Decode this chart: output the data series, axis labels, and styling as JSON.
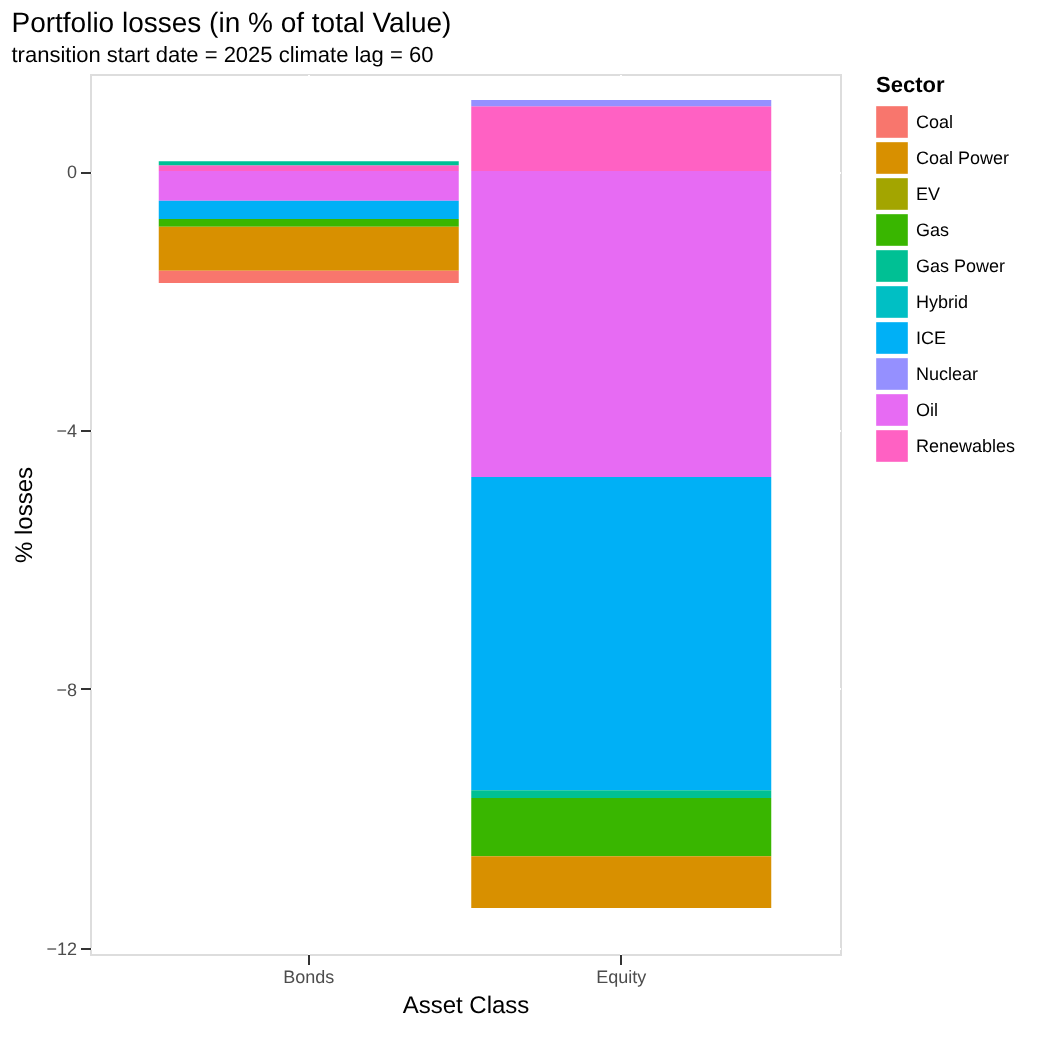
{
  "chart_data": {
    "type": "bar",
    "title": "Portfolio losses (in % of total Value)",
    "subtitle": "transition start date = 2025   climate lag = 60",
    "xlabel": "Asset Class",
    "ylabel": "% losses",
    "legend_title": "Sector",
    "categories": [
      "Bonds",
      "Equity"
    ],
    "stacked": true,
    "series": [
      {
        "name": "Renewables",
        "color": "#ff61c3",
        "values": [
          0.09,
          1.0
        ]
      },
      {
        "name": "Oil",
        "color": "#e76bf3",
        "values": [
          -0.46,
          -4.73
        ]
      },
      {
        "name": "Nuclear",
        "color": "#9590ff",
        "values": [
          null,
          0.1
        ]
      },
      {
        "name": "ICE",
        "color": "#00b0f6",
        "values": [
          -0.28,
          -4.84
        ]
      },
      {
        "name": "Hybrid",
        "color": "#00bfc4",
        "values": [
          null,
          null
        ]
      },
      {
        "name": "Gas Power",
        "color": "#00c094",
        "values": [
          0.06,
          -0.12
        ]
      },
      {
        "name": "Gas",
        "color": "#39b600",
        "values": [
          -0.12,
          -0.9
        ]
      },
      {
        "name": "EV",
        "color": "#a3a500",
        "values": [
          null,
          null
        ]
      },
      {
        "name": "Coal Power",
        "color": "#d89000",
        "values": [
          -0.68,
          -0.8
        ]
      },
      {
        "name": "Coal",
        "color": "#f8766d",
        "values": [
          -0.19,
          null
        ]
      }
    ],
    "ylim": [
      -12.1,
      1.5
    ],
    "yticks": [
      -12,
      -8,
      -4,
      0
    ],
    "grid": true,
    "legend": "right"
  }
}
